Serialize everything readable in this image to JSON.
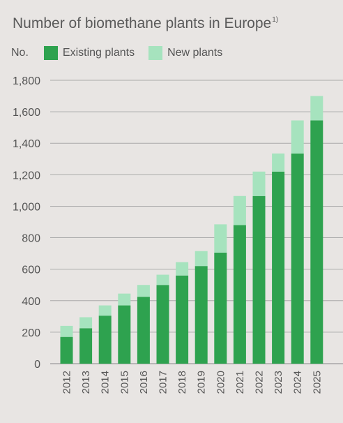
{
  "title_main": "Number of biomethane plants in Europe",
  "title_note": "1)",
  "colors": {
    "existing": "#2ea24f",
    "new": "#a6e3be",
    "grid": "#aaaaaa",
    "text": "#555555"
  },
  "chart_data": {
    "type": "bar",
    "stacked": true,
    "title": "Number of biomethane plants in Europe",
    "ylabel": "No.",
    "xlabel": "",
    "ylim": [
      0,
      1800
    ],
    "yticks": [
      0,
      200,
      400,
      600,
      800,
      1000,
      1200,
      1400,
      1600,
      1800
    ],
    "ytick_labels": [
      "0",
      "200",
      "400",
      "600",
      "800",
      "1,000",
      "1,200",
      "1,400",
      "1,600",
      "1,800"
    ],
    "grid": true,
    "legend_position": "top",
    "categories": [
      "2012",
      "2013",
      "2014",
      "2015",
      "2016",
      "2017",
      "2018",
      "2019",
      "2020",
      "2021",
      "2022",
      "2023",
      "2024",
      "2025"
    ],
    "series": [
      {
        "name": "Existing plants",
        "values": [
          170,
          225,
          305,
          370,
          425,
          500,
          560,
          620,
          705,
          880,
          1065,
          1220,
          1335,
          1545
        ]
      },
      {
        "name": "New plants",
        "values": [
          70,
          70,
          65,
          75,
          75,
          65,
          85,
          95,
          180,
          185,
          155,
          115,
          210,
          155
        ]
      }
    ]
  }
}
